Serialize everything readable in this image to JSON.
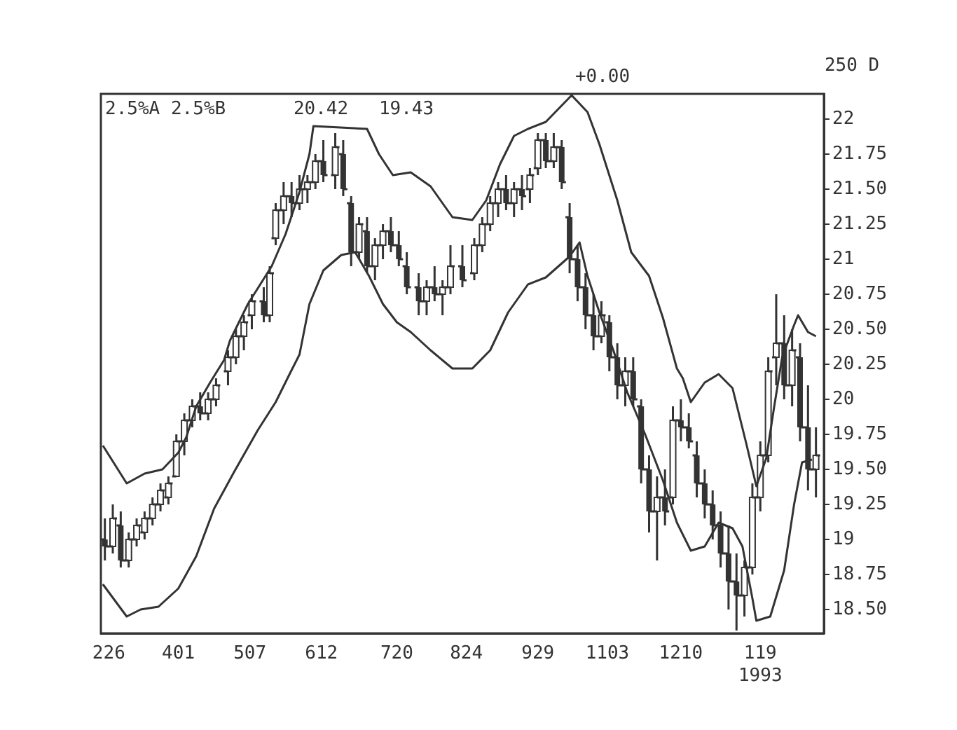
{
  "chart_data": {
    "type": "candlestick",
    "color": "#333333",
    "annotations": [
      "2.5%A 2.5%B",
      "20.42",
      "19.43",
      "+0.00",
      "250 D"
    ],
    "x": [
      "1992-02-24",
      "1992-02-28",
      "1992-03-03",
      "1992-03-07",
      "1992-03-11",
      "1992-03-15",
      "1992-03-19",
      "1992-03-23",
      "1992-03-27",
      "1992-03-31",
      "1992-04-04",
      "1992-04-08",
      "1992-04-12",
      "1992-04-16",
      "1992-04-20",
      "1992-04-26",
      "1992-04-30",
      "1992-05-04",
      "1992-05-08",
      "1992-05-14",
      "1992-05-17",
      "1992-05-20",
      "1992-05-24",
      "1992-05-28",
      "1992-06-01",
      "1992-06-05",
      "1992-06-09",
      "1992-06-13",
      "1992-06-19",
      "1992-06-23",
      "1992-06-27",
      "1992-07-01",
      "1992-07-05",
      "1992-07-09",
      "1992-07-13",
      "1992-07-17",
      "1992-07-21",
      "1992-07-25",
      "1992-07-31",
      "1992-08-04",
      "1992-08-08",
      "1992-08-12",
      "1992-08-16",
      "1992-08-22",
      "1992-08-28",
      "1992-09-01",
      "1992-09-05",
      "1992-09-09",
      "1992-09-13",
      "1992-09-17",
      "1992-09-21",
      "1992-09-25",
      "1992-09-29",
      "1992-10-03",
      "1992-10-07",
      "1992-10-11",
      "1992-10-15",
      "1992-10-19",
      "1992-10-23",
      "1992-10-27",
      "1992-10-31",
      "1992-11-04",
      "1992-11-08",
      "1992-11-12",
      "1992-11-16",
      "1992-11-20",
      "1992-11-24",
      "1992-11-28",
      "1992-12-02",
      "1992-12-06",
      "1992-12-10",
      "1992-12-14",
      "1992-12-18",
      "1992-12-22",
      "1992-12-26",
      "1992-12-30",
      "1993-01-03",
      "1993-01-07",
      "1993-01-11",
      "1993-01-15",
      "1993-01-19",
      "1993-01-23",
      "1993-01-27",
      "1993-01-31",
      "1993-02-04",
      "1993-02-08",
      "1993-02-12",
      "1993-02-16"
    ],
    "ohlc": [
      [
        19.0,
        19.15,
        18.85,
        18.95
      ],
      [
        18.95,
        19.25,
        18.9,
        19.15
      ],
      [
        19.1,
        19.2,
        18.8,
        18.85
      ],
      [
        18.85,
        19.05,
        18.8,
        19.0
      ],
      [
        19.0,
        19.15,
        18.95,
        19.1
      ],
      [
        19.05,
        19.2,
        19.0,
        19.15
      ],
      [
        19.15,
        19.3,
        19.1,
        19.25
      ],
      [
        19.25,
        19.4,
        19.2,
        19.35
      ],
      [
        19.3,
        19.45,
        19.25,
        19.4
      ],
      [
        19.45,
        19.75,
        19.45,
        19.7
      ],
      [
        19.7,
        19.9,
        19.6,
        19.85
      ],
      [
        19.85,
        20.0,
        19.8,
        19.95
      ],
      [
        19.95,
        20.05,
        19.85,
        19.9
      ],
      [
        19.9,
        20.05,
        19.85,
        20.0
      ],
      [
        20.0,
        20.15,
        19.95,
        20.1
      ],
      [
        20.2,
        20.35,
        20.1,
        20.3
      ],
      [
        20.3,
        20.5,
        20.25,
        20.45
      ],
      [
        20.45,
        20.6,
        20.35,
        20.55
      ],
      [
        20.6,
        20.75,
        20.5,
        20.7
      ],
      [
        20.7,
        20.8,
        20.55,
        20.6
      ],
      [
        20.6,
        20.95,
        20.55,
        20.9
      ],
      [
        21.15,
        21.4,
        21.1,
        21.35
      ],
      [
        21.35,
        21.55,
        21.25,
        21.45
      ],
      [
        21.45,
        21.55,
        21.3,
        21.4
      ],
      [
        21.4,
        21.6,
        21.35,
        21.5
      ],
      [
        21.5,
        21.6,
        21.4,
        21.55
      ],
      [
        21.55,
        21.75,
        21.5,
        21.7
      ],
      [
        21.7,
        21.85,
        21.55,
        21.6
      ],
      [
        21.6,
        21.9,
        21.5,
        21.8
      ],
      [
        21.75,
        21.85,
        21.45,
        21.5
      ],
      [
        21.4,
        21.45,
        20.95,
        21.05
      ],
      [
        21.05,
        21.3,
        21.0,
        21.25
      ],
      [
        21.2,
        21.3,
        20.9,
        20.95
      ],
      [
        20.95,
        21.15,
        20.85,
        21.1
      ],
      [
        21.1,
        21.25,
        21.0,
        21.2
      ],
      [
        21.2,
        21.3,
        21.05,
        21.1
      ],
      [
        21.1,
        21.2,
        20.95,
        21.0
      ],
      [
        20.95,
        21.05,
        20.75,
        20.8
      ],
      [
        20.8,
        20.9,
        20.6,
        20.7
      ],
      [
        20.7,
        20.85,
        20.6,
        20.8
      ],
      [
        20.8,
        20.95,
        20.7,
        20.75
      ],
      [
        20.75,
        20.85,
        20.6,
        20.8
      ],
      [
        20.8,
        21.1,
        20.75,
        20.95
      ],
      [
        20.95,
        21.1,
        20.8,
        20.85
      ],
      [
        20.9,
        21.15,
        20.85,
        21.1
      ],
      [
        21.1,
        21.3,
        21.05,
        21.25
      ],
      [
        21.25,
        21.45,
        21.2,
        21.4
      ],
      [
        21.4,
        21.55,
        21.3,
        21.5
      ],
      [
        21.5,
        21.6,
        21.35,
        21.4
      ],
      [
        21.4,
        21.55,
        21.3,
        21.5
      ],
      [
        21.5,
        21.6,
        21.35,
        21.45
      ],
      [
        21.5,
        21.65,
        21.4,
        21.6
      ],
      [
        21.65,
        21.9,
        21.6,
        21.85
      ],
      [
        21.85,
        21.9,
        21.65,
        21.7
      ],
      [
        21.7,
        21.9,
        21.65,
        21.8
      ],
      [
        21.8,
        21.85,
        21.5,
        21.55
      ],
      [
        21.3,
        21.4,
        20.9,
        21.0
      ],
      [
        21.0,
        21.1,
        20.7,
        20.8
      ],
      [
        20.8,
        20.9,
        20.5,
        20.6
      ],
      [
        20.6,
        20.75,
        20.35,
        20.45
      ],
      [
        20.45,
        20.7,
        20.4,
        20.6
      ],
      [
        20.55,
        20.6,
        20.2,
        20.3
      ],
      [
        20.3,
        20.4,
        20.0,
        20.1
      ],
      [
        20.1,
        20.3,
        19.95,
        20.2
      ],
      [
        20.2,
        20.3,
        19.95,
        20.0
      ],
      [
        19.95,
        20.0,
        19.4,
        19.5
      ],
      [
        19.5,
        19.6,
        19.05,
        19.2
      ],
      [
        19.2,
        19.45,
        18.85,
        19.3
      ],
      [
        19.3,
        19.5,
        19.1,
        19.2
      ],
      [
        19.3,
        19.95,
        19.25,
        19.85
      ],
      [
        19.85,
        20.0,
        19.7,
        19.8
      ],
      [
        19.8,
        19.9,
        19.65,
        19.7
      ],
      [
        19.6,
        19.7,
        19.3,
        19.4
      ],
      [
        19.4,
        19.5,
        19.15,
        19.25
      ],
      [
        19.25,
        19.35,
        19.0,
        19.1
      ],
      [
        19.1,
        19.2,
        18.8,
        18.9
      ],
      [
        18.9,
        19.1,
        18.5,
        18.7
      ],
      [
        18.7,
        18.9,
        18.35,
        18.6
      ],
      [
        18.6,
        18.85,
        18.45,
        18.8
      ],
      [
        18.8,
        19.4,
        18.75,
        19.3
      ],
      [
        19.3,
        19.7,
        19.2,
        19.6
      ],
      [
        19.6,
        20.3,
        19.55,
        20.2
      ],
      [
        20.3,
        20.75,
        20.1,
        20.4
      ],
      [
        20.4,
        20.6,
        20.0,
        20.1
      ],
      [
        20.1,
        20.5,
        19.95,
        20.35
      ],
      [
        20.3,
        20.4,
        19.7,
        19.8
      ],
      [
        19.8,
        20.1,
        19.35,
        19.5
      ],
      [
        19.5,
        19.8,
        19.3,
        19.6
      ]
    ],
    "series": [
      {
        "type": "line",
        "color": "#333333",
        "x": [
          "1992-02-23",
          "1992-03-06",
          "1992-03-15",
          "1992-03-24",
          "1992-04-01",
          "1992-04-05",
          "1992-04-10",
          "1992-04-17",
          "1992-04-24",
          "1992-04-27",
          "1992-05-06",
          "1992-05-18",
          "1992-05-25",
          "1992-06-01",
          "1992-06-06",
          "1992-06-08",
          "1992-07-05",
          "1992-07-11",
          "1992-07-18",
          "1992-07-27",
          "1992-08-06",
          "1992-08-17",
          "1992-08-27",
          "1992-09-03",
          "1992-09-10",
          "1992-09-17",
          "1992-09-24",
          "1992-10-03",
          "1992-10-16",
          "1992-10-24",
          "1992-10-30",
          "1992-11-08",
          "1992-11-15",
          "1992-11-24",
          "1992-12-01",
          "1992-12-08",
          "1992-12-11",
          "1992-12-15",
          "1992-12-22",
          "1992-12-29",
          "1993-01-05",
          "1993-01-12",
          "1993-01-17",
          "1993-01-22",
          "1993-01-26",
          "1993-01-30",
          "1993-02-05",
          "1993-02-07",
          "1993-02-12",
          "1993-02-16"
        ],
        "values": [
          19.67,
          19.4,
          19.47,
          19.5,
          19.62,
          19.73,
          19.95,
          20.12,
          20.28,
          20.42,
          20.68,
          20.95,
          21.18,
          21.48,
          21.75,
          21.95,
          21.93,
          21.75,
          21.6,
          21.62,
          21.52,
          21.3,
          21.28,
          21.42,
          21.68,
          21.88,
          21.93,
          21.98,
          22.17,
          22.05,
          21.82,
          21.42,
          21.05,
          20.88,
          20.58,
          20.22,
          20.15,
          19.98,
          20.12,
          20.18,
          20.08,
          19.68,
          19.38,
          19.58,
          19.95,
          20.3,
          20.53,
          20.6,
          20.48,
          20.45
        ]
      },
      {
        "type": "line",
        "color": "#333333",
        "x": [
          "1992-02-23",
          "1992-03-06",
          "1992-03-13",
          "1992-03-22",
          "1992-04-01",
          "1992-04-10",
          "1992-04-19",
          "1992-04-29",
          "1992-05-11",
          "1992-05-20",
          "1992-05-27",
          "1992-06-01",
          "1992-06-06",
          "1992-06-13",
          "1992-06-22",
          "1992-06-29",
          "1992-07-06",
          "1992-07-13",
          "1992-07-20",
          "1992-07-27",
          "1992-08-06",
          "1992-08-17",
          "1992-08-27",
          "1992-09-05",
          "1992-09-14",
          "1992-09-24",
          "1992-10-03",
          "1992-10-15",
          "1992-10-20",
          "1992-10-24",
          "1992-10-30",
          "1992-11-06",
          "1992-11-13",
          "1992-11-22",
          "1992-12-01",
          "1992-12-08",
          "1992-12-15",
          "1992-12-22",
          "1992-12-29",
          "1993-01-05",
          "1993-01-10",
          "1993-01-15",
          "1993-01-17",
          "1993-01-24",
          "1993-01-31",
          "1993-02-05",
          "1993-02-09",
          "1993-02-14"
        ],
        "values": [
          18.68,
          18.45,
          18.5,
          18.52,
          18.65,
          18.88,
          19.22,
          19.48,
          19.78,
          19.98,
          20.18,
          20.32,
          20.68,
          20.92,
          21.03,
          21.05,
          20.88,
          20.68,
          20.55,
          20.48,
          20.35,
          20.22,
          20.22,
          20.35,
          20.62,
          20.82,
          20.87,
          21.02,
          21.12,
          20.88,
          20.62,
          20.35,
          20.05,
          19.75,
          19.42,
          19.12,
          18.92,
          18.95,
          19.12,
          19.08,
          18.95,
          18.58,
          18.42,
          18.45,
          18.78,
          19.25,
          19.55,
          19.57
        ]
      }
    ],
    "xlim": [
      "1992-02-22",
      "1993-02-20"
    ],
    "xticks": [
      {
        "value": "1992-02-26",
        "label": "226"
      },
      {
        "value": "1992-04-01",
        "label": "401"
      },
      {
        "value": "1992-05-07",
        "label": "507"
      },
      {
        "value": "1992-06-12",
        "label": "612"
      },
      {
        "value": "1992-07-20",
        "label": "720"
      },
      {
        "value": "1992-08-24",
        "label": "824"
      },
      {
        "value": "1992-09-29",
        "label": "929"
      },
      {
        "value": "1992-11-03",
        "label": "1103"
      },
      {
        "value": "1992-12-10",
        "label": "1210"
      },
      {
        "value": "1993-01-19",
        "label": "119\n1993"
      }
    ],
    "ylim": [
      18.33,
      22.18
    ],
    "yticks": [
      22,
      21.75,
      {
        "value": 21.5,
        "label": "21.50"
      },
      21.25,
      21,
      20.75,
      {
        "value": 20.5,
        "label": "20.50"
      },
      20.25,
      20,
      19.75,
      {
        "value": 19.5,
        "label": "19.50"
      },
      19.25,
      19,
      18.75,
      {
        "value": 18.5,
        "label": "18.50"
      }
    ],
    "grid": false,
    "legend": false
  }
}
